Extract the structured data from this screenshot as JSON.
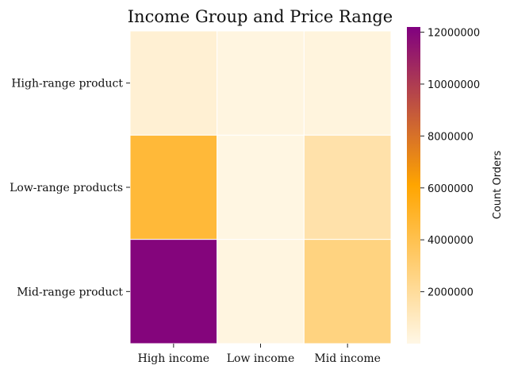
{
  "chart_data": {
    "type": "heatmap",
    "title": "Income Group and Price Range",
    "x_categories": [
      "High income",
      "Low income",
      "Mid income"
    ],
    "y_categories": [
      "High-range product",
      "Low-range products",
      "Mid-range product"
    ],
    "values": [
      [
        500000,
        150000,
        250000
      ],
      [
        4600000,
        100000,
        1600000
      ],
      [
        12000000,
        150000,
        2700000
      ]
    ],
    "colorbar": {
      "label": "Count Orders",
      "range": [
        0,
        12200000
      ],
      "ticks": [
        2000000,
        4000000,
        6000000,
        8000000,
        10000000,
        12000000
      ],
      "tick_labels": [
        "2000000",
        "4000000",
        "6000000",
        "8000000",
        "10000000",
        "12000000"
      ]
    },
    "colors": [
      "#fff7e6",
      "#ffa500",
      "#800080"
    ],
    "grid": false
  }
}
